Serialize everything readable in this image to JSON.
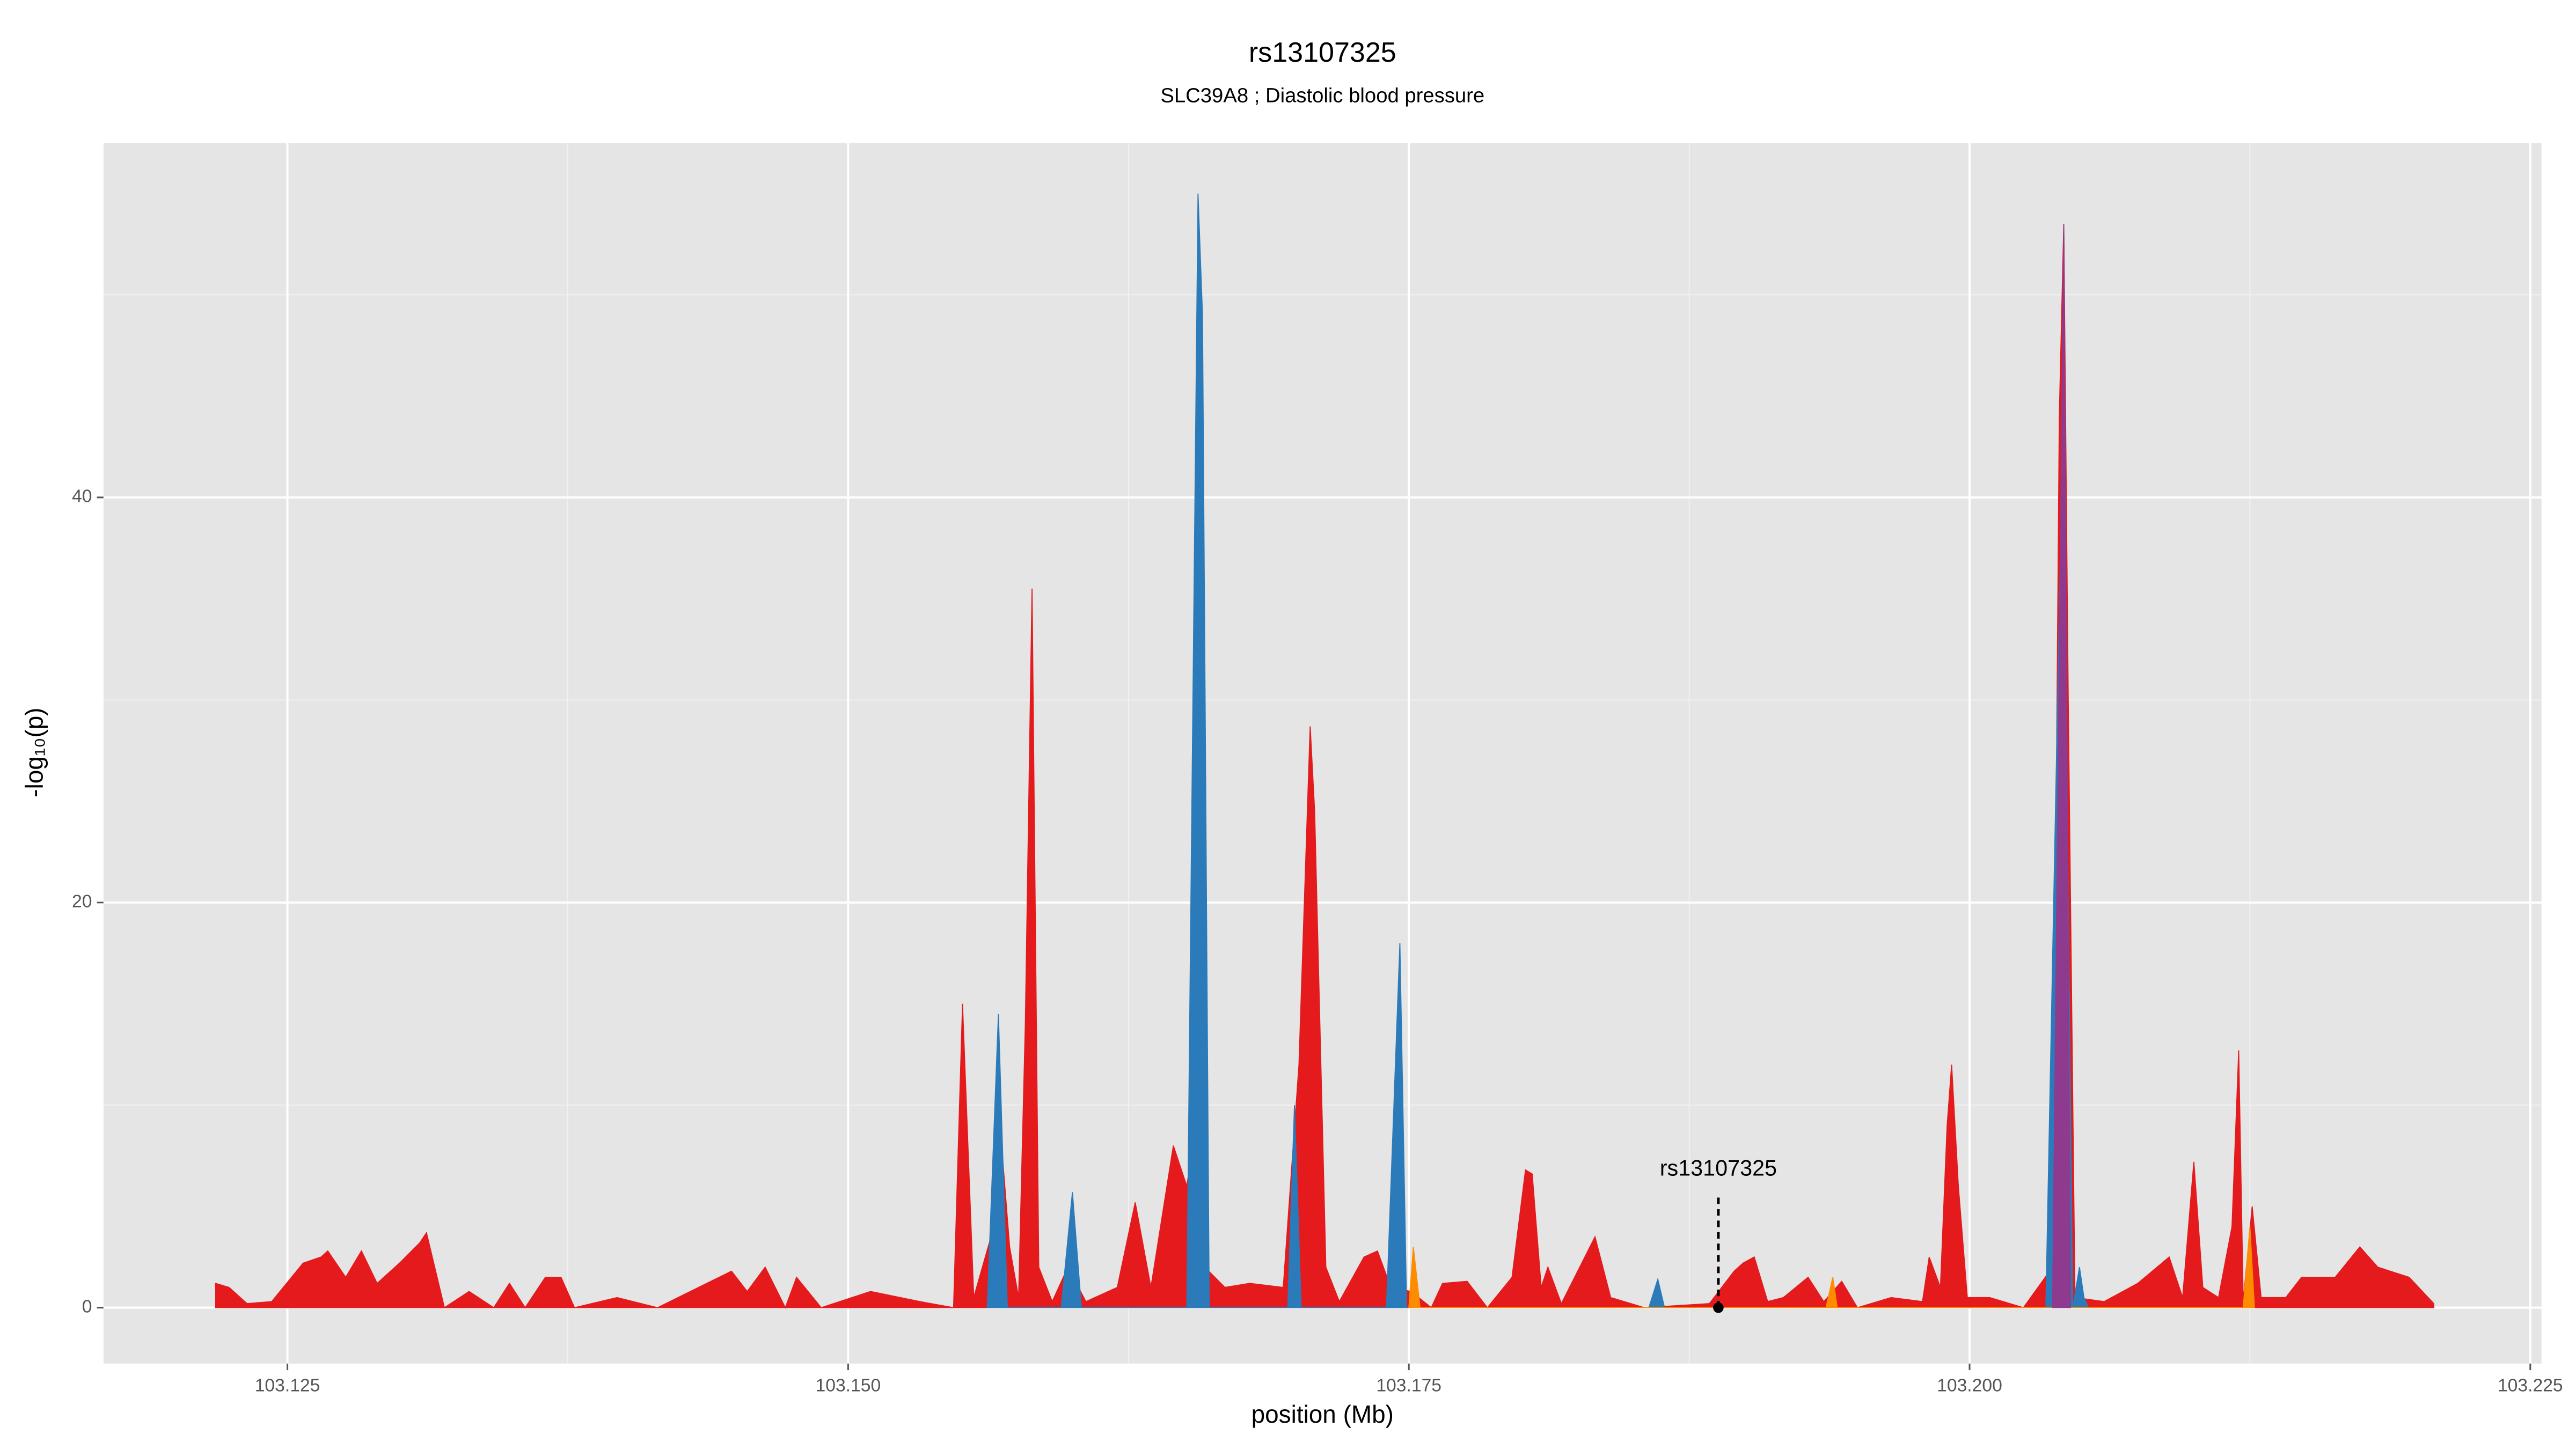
{
  "chart_data": {
    "type": "area",
    "title": "rs13107325",
    "subtitle": "SLC39A8 ; Diastolic blood pressure",
    "xlabel": "position (Mb)",
    "ylabel": "-log₁₀(p)",
    "xlim": [
      103.1168,
      103.2255
    ],
    "ylim": [
      -2.76,
      57.5
    ],
    "xticks": [
      103.125,
      {
        "value": 103.15,
        "label": "103.150"
      },
      103.175,
      {
        "value": 103.2,
        "label": "103.200"
      },
      103.225
    ],
    "yticks": [
      0,
      20,
      40
    ],
    "x_minor_grid": [
      103.1375,
      103.1625,
      103.1875,
      103.2125
    ],
    "y_minor_grid": [
      10,
      30,
      50
    ],
    "grid": true,
    "annotation": {
      "text": "rs13107325",
      "x": 103.1888,
      "y": 0
    },
    "series": [
      {
        "color": "#e41a1c",
        "x": [
          103.1218,
          103.1224,
          103.1232,
          103.1243,
          103.1257,
          103.1265,
          103.1268,
          103.1276,
          103.1283,
          103.129,
          103.13,
          103.1309,
          103.1312,
          103.132,
          103.1331,
          103.1342,
          103.1349,
          103.1356,
          103.1365,
          103.1372,
          103.1378,
          103.1397,
          103.1415,
          103.1448,
          103.1455,
          103.1463,
          103.1472,
          103.1477,
          103.1488,
          103.151,
          103.1532,
          103.1547,
          103.1551,
          103.1556,
          103.1565,
          103.1567,
          103.1572,
          103.1576,
          103.1579,
          103.1582,
          103.1585,
          103.1591,
          103.1598,
          103.1606,
          103.162,
          103.1628,
          103.1635,
          103.1645,
          103.1651,
          103.1655,
          103.1659,
          103.1668,
          103.1679,
          103.1694,
          103.1701,
          103.1706,
          103.1708,
          103.1713,
          103.1719,
          103.173,
          103.1736,
          103.1742,
          103.1751,
          103.176,
          103.1765,
          103.1776,
          103.1785,
          103.1796,
          103.1802,
          103.1805,
          103.1809,
          103.1812,
          103.1818,
          103.1833,
          103.184,
          103.1855,
          103.1884,
          103.1895,
          103.1899,
          103.1904,
          103.191,
          103.1917,
          103.1928,
          103.1935,
          103.1943,
          103.195,
          103.1965,
          103.1979,
          103.1982,
          103.1987,
          103.199,
          103.1992,
          103.1995,
          103.1999,
          103.2009,
          103.2024,
          103.2037,
          103.204,
          103.2042,
          103.2044,
          103.2047,
          103.206,
          103.2075,
          103.2089,
          103.2095,
          103.21,
          103.2104,
          103.2111,
          103.2117,
          103.212,
          103.2122,
          103.2126,
          103.213,
          103.2141,
          103.2148,
          103.2163,
          103.2174,
          103.2182,
          103.2196,
          103.2207
        ],
        "values": [
          1.2,
          1,
          0.2,
          0.3,
          2.2,
          2.5,
          2.8,
          1.5,
          2.8,
          1.2,
          2.2,
          3.2,
          3.7,
          0,
          0.8,
          0,
          1.2,
          0,
          1.5,
          1.5,
          0,
          0.5,
          0,
          1.8,
          0.8,
          2,
          0,
          1.5,
          0,
          0.8,
          0.3,
          0,
          15,
          0.5,
          4,
          10,
          3,
          0.5,
          14,
          35.5,
          2,
          0.3,
          2,
          0.3,
          1,
          5.2,
          1,
          8,
          6,
          9,
          2,
          1,
          1.2,
          1,
          12,
          28.7,
          24.5,
          2,
          0.3,
          2.5,
          2.8,
          1,
          0.8,
          0,
          1.2,
          1.3,
          0,
          1.5,
          6.8,
          6.6,
          1,
          2,
          0.2,
          3.5,
          0.5,
          0,
          0.2,
          1.8,
          2.2,
          2.5,
          0.3,
          0.5,
          1.5,
          0.3,
          1.3,
          0,
          0.5,
          0.3,
          2.5,
          1,
          9,
          12,
          6,
          0.5,
          0.5,
          0,
          2,
          44,
          53.5,
          30,
          0.5,
          0.3,
          1.2,
          2.5,
          0.5,
          7.2,
          1,
          0.5,
          4,
          12.7,
          0.3,
          5,
          0.5,
          0.5,
          1.5,
          1.5,
          3,
          2,
          1.5,
          0.2
        ]
      },
      {
        "color": "#2b7bba",
        "x": [
          103.1562,
          103.1567,
          103.1571,
          103.1595,
          103.16,
          103.1604,
          103.1651,
          103.1656,
          103.1658,
          103.1661,
          103.1696,
          103.1699,
          103.1702,
          103.174,
          103.1746,
          103.1749,
          103.1857,
          103.1861,
          103.1864,
          103.2034,
          103.2041,
          103.2043,
          103.2046,
          103.2049,
          103.2051,
          103.2053
        ],
        "values": [
          0,
          14.5,
          0,
          0,
          5.7,
          0,
          0,
          55,
          49,
          0,
          0,
          10,
          0,
          0,
          18,
          0,
          0,
          1.4,
          0,
          0,
          40,
          30,
          0,
          2,
          0.5,
          0
        ]
      },
      {
        "color": "#ff8c00",
        "x": [
          103.175,
          103.1752,
          103.1755,
          103.1936,
          103.1939,
          103.1941,
          103.2122,
          103.2125,
          103.2127
        ],
        "values": [
          0,
          3,
          0,
          0,
          1.5,
          0,
          0,
          4,
          0
        ]
      },
      {
        "color": "#8e3a8e",
        "x": [
          103.2037,
          103.2042,
          103.2045
        ],
        "values": [
          0,
          53.5,
          0
        ]
      }
    ]
  }
}
